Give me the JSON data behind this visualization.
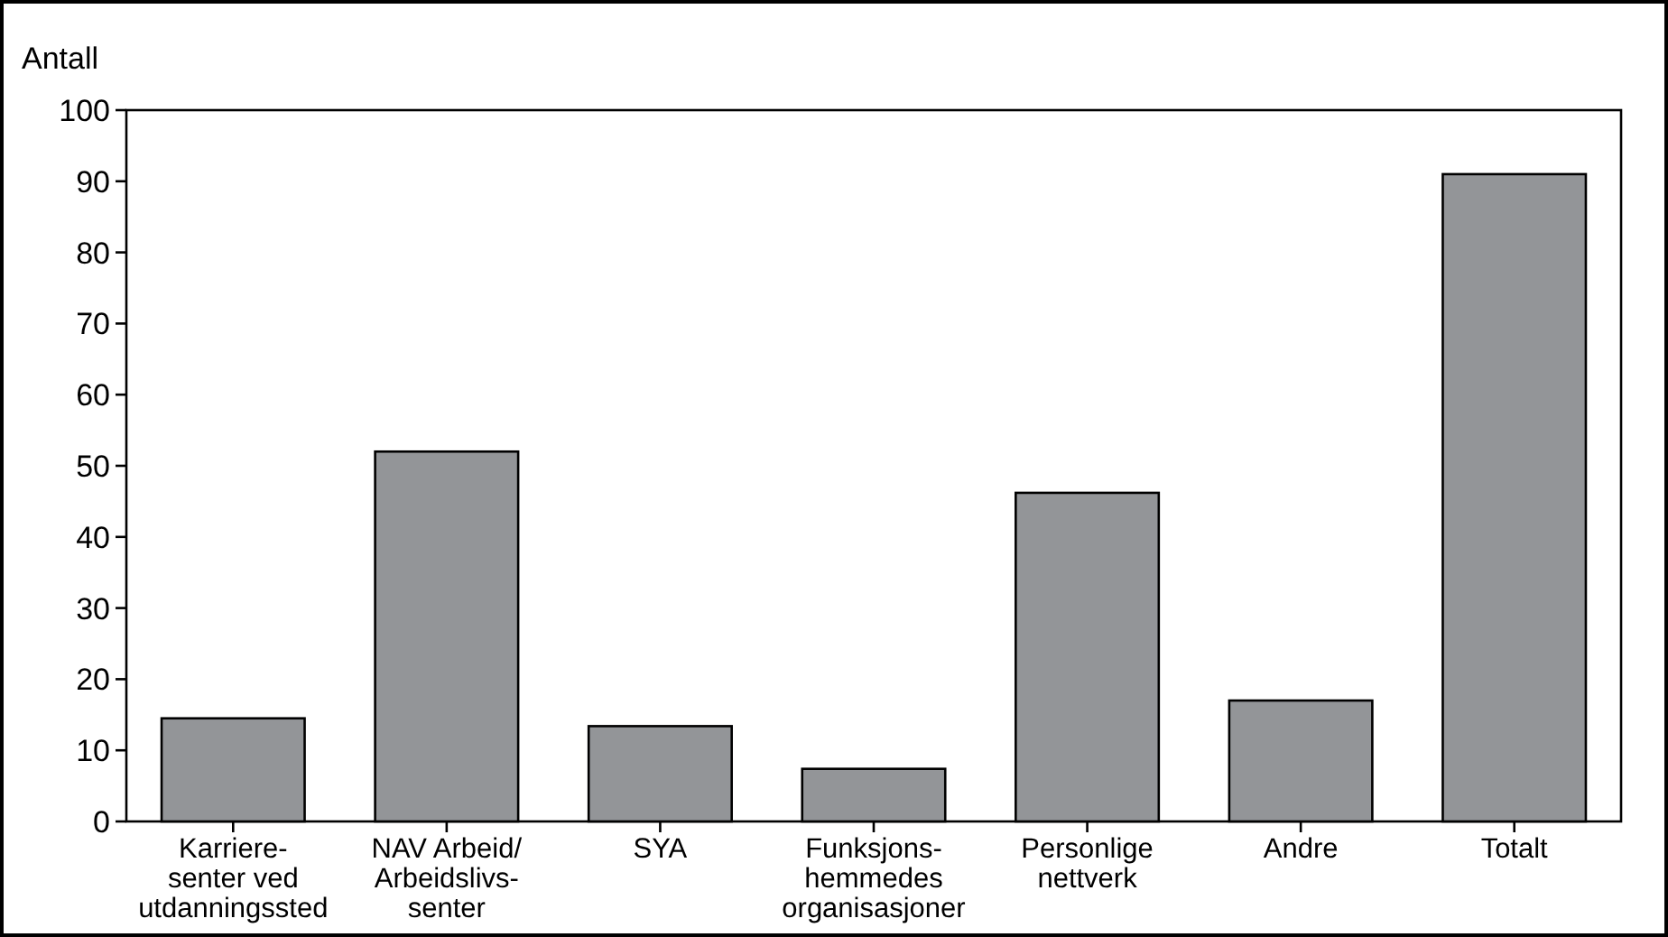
{
  "chart_data": {
    "type": "bar",
    "ylabel": "Antall",
    "categories": [
      "Karriere-\nsenter ved\nutdanningssted",
      "NAV Arbeid/\nArbeidslivs-\nsenter",
      "SYA",
      "Funksjons-\nhemmedes\norganisasjoner",
      "Personlige\nnettverk",
      "Andre",
      "Totalt"
    ],
    "values": [
      14.5,
      52,
      13.4,
      7.4,
      46.2,
      17,
      91
    ],
    "color": "#939598",
    "ylim": [
      0,
      100
    ],
    "yticks": [
      0,
      10,
      20,
      30,
      40,
      50,
      60,
      70,
      80,
      90,
      100
    ],
    "grid": false
  }
}
